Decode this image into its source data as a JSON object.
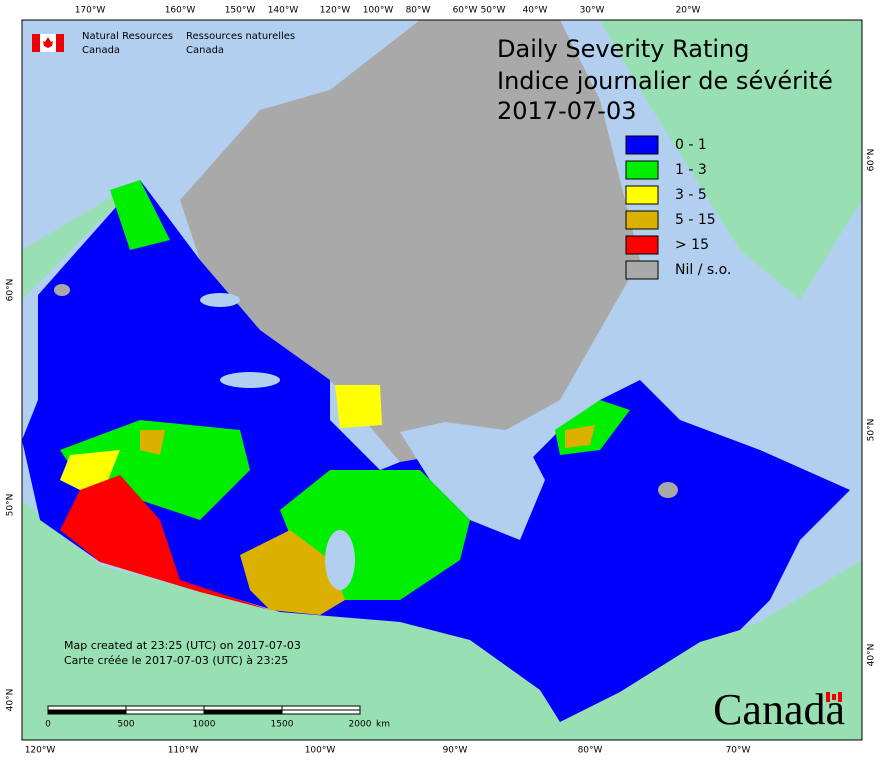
{
  "header": {
    "agency_en": [
      "Natural Resources",
      "Canada"
    ],
    "agency_fr": [
      "Ressources naturelles",
      "Canada"
    ]
  },
  "title": [
    "Daily Severity Rating",
    "Indice journalier de sévérité",
    "2017-07-03"
  ],
  "legend": [
    {
      "label": "0 - 1",
      "color": "#0000ff"
    },
    {
      "label": "1 - 3",
      "color": "#00ee00"
    },
    {
      "label": "3 - 5",
      "color": "#ffff00"
    },
    {
      "label": "5 - 15",
      "color": "#dcb000"
    },
    {
      "label": "> 15",
      "color": "#ff0000"
    },
    {
      "label": "Nil / s.o.",
      "color": "#a9a9a9"
    }
  ],
  "graticule": {
    "top": [
      "170°W",
      "160°W",
      "150°W",
      "140°W",
      "120°W",
      "100°W",
      "80°W",
      "60°W",
      "50°W",
      "40°W",
      "30°W",
      "20°W"
    ],
    "bottom": [
      "120°W",
      "110°W",
      "100°W",
      "90°W",
      "80°W",
      "70°W"
    ],
    "left": [
      "60°N",
      "50°N",
      "40°N"
    ],
    "right": [
      "60°N",
      "50°N",
      "40°N"
    ]
  },
  "notes": [
    "Map created at 23:25 (UTC) on 2017-07-03",
    "Carte créée le 2017-07-03 (UTC) à 23:25"
  ],
  "scale_bar": {
    "ticks": [
      "0",
      "500",
      "1000",
      "1500",
      "2000"
    ],
    "unit": "km"
  },
  "wordmark": "Canada"
}
